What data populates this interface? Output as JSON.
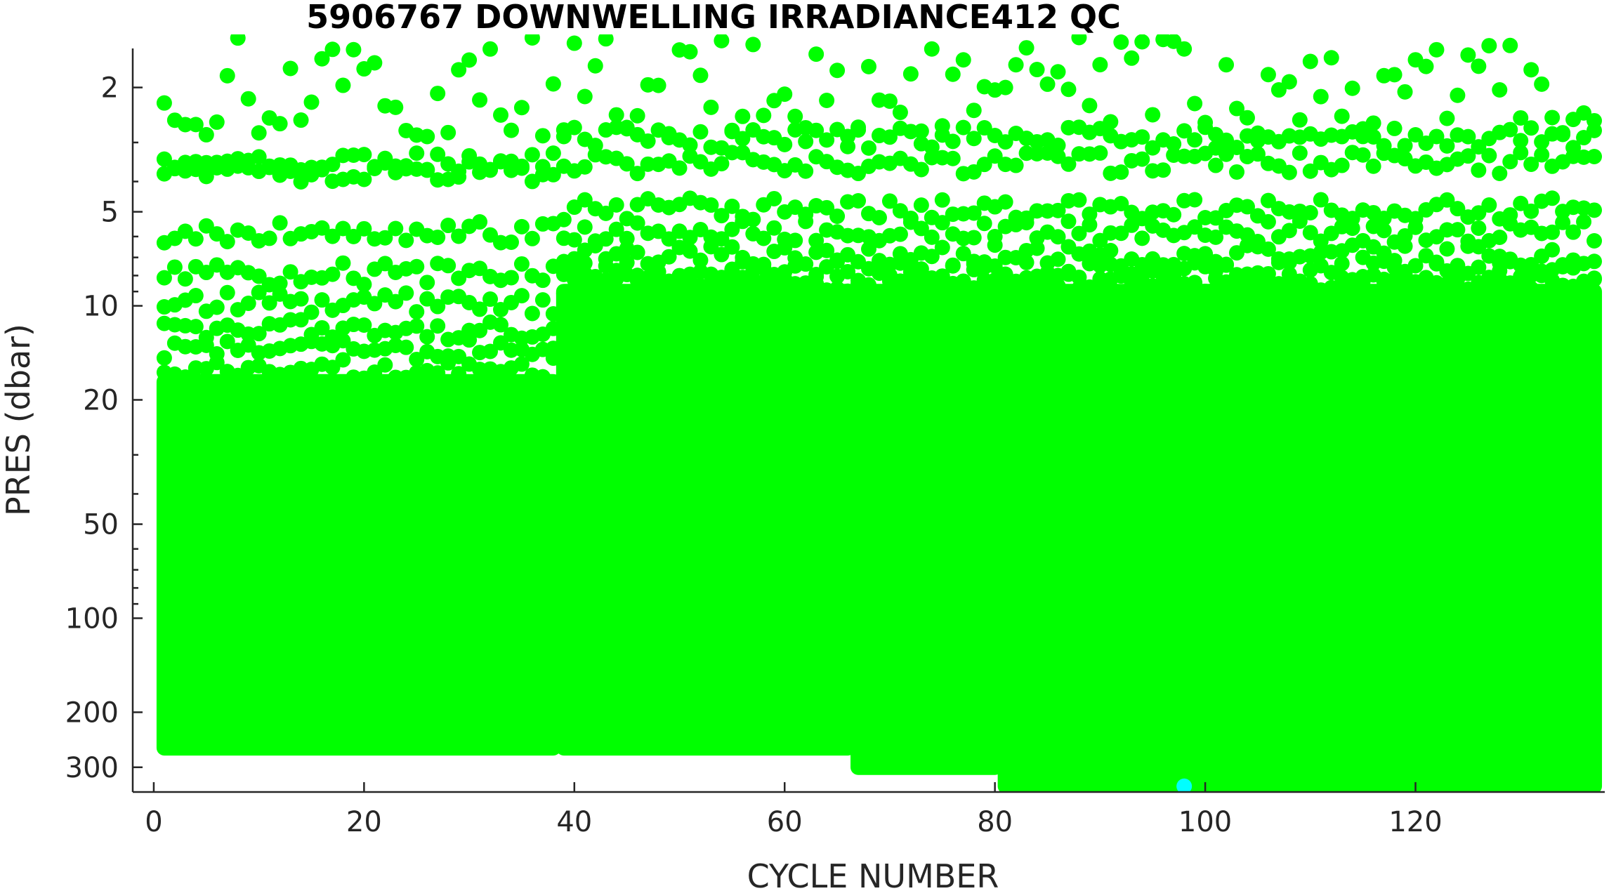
{
  "chart_data": {
    "type": "scatter",
    "title": "5906767  DOWNWELLING IRRADIANCE412 QC",
    "xlabel": "CYCLE NUMBER",
    "ylabel": "PRES (dbar)",
    "x_scale": "linear",
    "y_scale": "log",
    "y_reversed": true,
    "xlim": [
      -2,
      138
    ],
    "ylim": [
      1.5,
      360
    ],
    "x_ticks": [
      0,
      20,
      40,
      60,
      80,
      100,
      120
    ],
    "y_ticks": [
      2,
      5,
      10,
      20,
      50,
      100,
      200,
      300
    ],
    "x_tick_labels": [
      "0",
      "20",
      "40",
      "60",
      "80",
      "100",
      "120"
    ],
    "y_tick_labels": [
      "2",
      "5",
      "10",
      "20",
      "50",
      "100",
      "200",
      "300"
    ],
    "grid": false,
    "legend": "none",
    "colors": {
      "qc_good": "#00ff00",
      "qc_other": "#00ffff",
      "axis": "#262626"
    },
    "series": [
      {
        "color": "#00ff00",
        "discrete_levels": {
          "cycles_1_to_38": [
            2.0,
            3.5,
            3.7,
            5.8,
            7.9,
            9.8,
            12.0,
            13.8,
            15.8
          ],
          "cycles_39_to_137": [
            2.0,
            2.9,
            3.5,
            4.9,
            5.8,
            6.9,
            7.8,
            8.3,
            8.8
          ]
        },
        "dense_fill": [
          {
            "x_start": 1,
            "x_end": 38,
            "p_top": 17.5,
            "p_bottom": 260
          },
          {
            "x_start": 39,
            "x_end": 66,
            "p_top": 9.0,
            "p_bottom": 260
          },
          {
            "x_start": 67,
            "x_end": 80,
            "p_top": 9.0,
            "p_bottom": 300
          },
          {
            "x_start": 81,
            "x_end": 137,
            "p_top": 9.0,
            "p_bottom": 345
          }
        ]
      },
      {
        "color": "#00ffff",
        "points": [
          {
            "x": 98,
            "y": 345
          }
        ]
      }
    ]
  }
}
